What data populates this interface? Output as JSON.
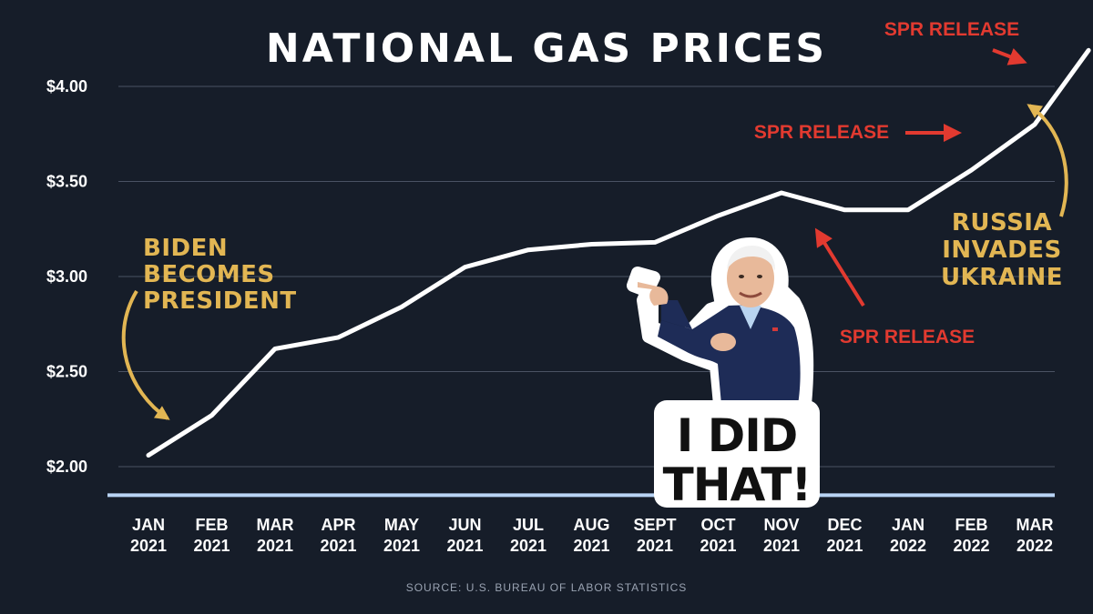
{
  "chart_data": {
    "type": "line",
    "title": "NATIONAL GAS PRICES",
    "categories": [
      [
        "JAN",
        "2021"
      ],
      [
        "FEB",
        "2021"
      ],
      [
        "MAR",
        "2021"
      ],
      [
        "APR",
        "2021"
      ],
      [
        "MAY",
        "2021"
      ],
      [
        "JUN",
        "2021"
      ],
      [
        "JUL",
        "2021"
      ],
      [
        "AUG",
        "2021"
      ],
      [
        "SEPT",
        "2021"
      ],
      [
        "OCT",
        "2021"
      ],
      [
        "NOV",
        "2021"
      ],
      [
        "DEC",
        "2021"
      ],
      [
        "JAN",
        "2022"
      ],
      [
        "FEB",
        "2022"
      ],
      [
        "MAR",
        "2022"
      ]
    ],
    "series": [
      {
        "name": "Gas price",
        "values": [
          2.06,
          2.27,
          2.62,
          2.68,
          2.84,
          3.05,
          3.14,
          3.17,
          3.18,
          3.32,
          3.44,
          3.35,
          3.35,
          3.56,
          3.8,
          4.19
        ],
        "x": [
          0,
          1,
          2,
          3,
          4,
          5,
          6,
          7,
          8,
          9,
          10,
          11,
          12,
          13,
          14,
          14.85
        ]
      }
    ],
    "yticks": [
      {
        "value": 2.0,
        "label": "$2.00"
      },
      {
        "value": 2.5,
        "label": "$2.50"
      },
      {
        "value": 3.0,
        "label": "$3.00"
      },
      {
        "value": 3.5,
        "label": "$3.50"
      },
      {
        "value": 4.0,
        "label": "$4.00"
      }
    ],
    "ylim": [
      1.85,
      4.4
    ],
    "baseline": 1.85,
    "grid": true,
    "legend": "none",
    "xlabel": "",
    "ylabel": "",
    "annotations": {
      "biden": [
        "BIDEN",
        "BECOMES",
        "PRESIDENT"
      ],
      "russia": [
        "RUSSIA",
        "INVADES",
        "UKRAINE"
      ],
      "spr_top": "SPR RELEASE",
      "spr_mid": "SPR RELEASE",
      "spr_low": "SPR RELEASE"
    },
    "source": "SOURCE: U.S. BUREAU OF LABOR STATISTICS"
  },
  "sticker": {
    "line1": "I DID",
    "line2": "THAT!"
  },
  "colors": {
    "background": "#161d29",
    "line": "#ffffff",
    "grid": "#4a5263",
    "baseline": "#b9d4f5",
    "gold": "#e2b653",
    "red": "#e23a30"
  }
}
